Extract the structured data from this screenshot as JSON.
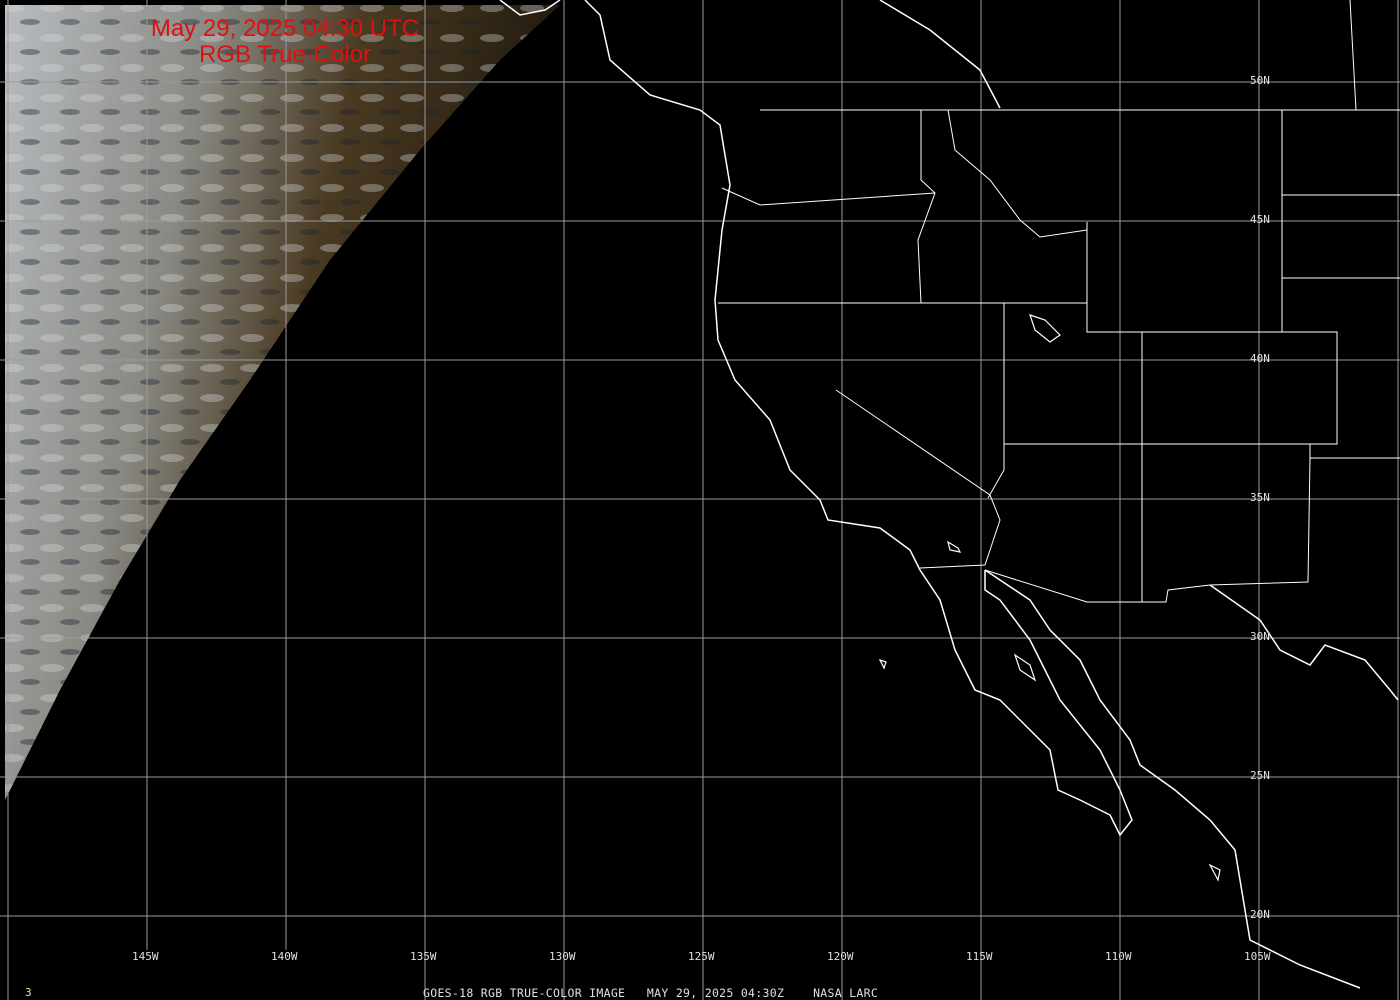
{
  "overlay": {
    "title_line1": "May 29, 2025 04:30 UTC",
    "title_line2": "RGB True-Color",
    "title_color": "#e01010"
  },
  "longitude_labels": [
    "145W",
    "140W",
    "135W",
    "130W",
    "125W",
    "120W",
    "115W",
    "110W",
    "105W"
  ],
  "latitude_labels": [
    "50N",
    "45N",
    "40N",
    "35N",
    "30N",
    "25N",
    "20N"
  ],
  "caption": {
    "frame_number": "3",
    "text": "GOES-18 RGB TRUE-COLOR IMAGE   MAY 29, 2025 04:30Z    NASA LARC"
  }
}
